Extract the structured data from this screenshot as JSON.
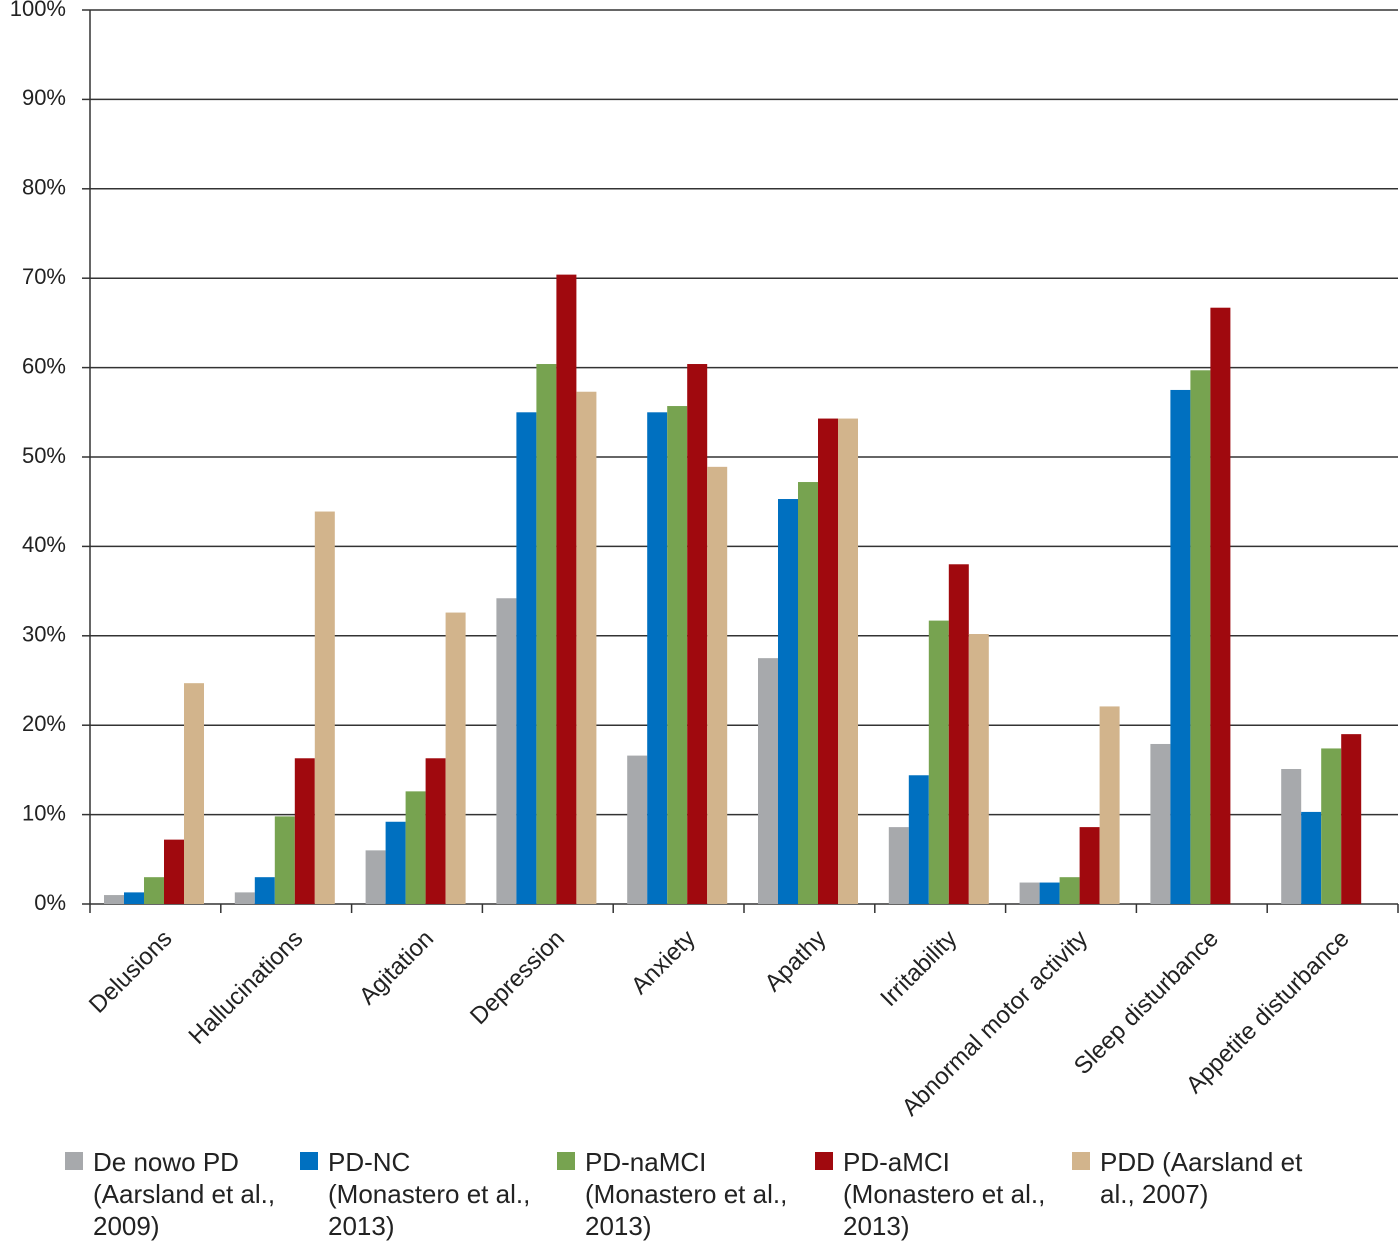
{
  "chart_data": {
    "type": "bar",
    "categories": [
      "Delusions",
      "Hallucinations",
      "Agitation",
      "Depression",
      "Anxiety",
      "Apathy",
      "Irritability",
      "Abnormal motor activity",
      "Sleep disturbance",
      "Appetite disturbance"
    ],
    "series": [
      {
        "name": "De nowo PD (Aarsland et al., 2009)",
        "color": "#a7a9ac",
        "values": [
          1.0,
          1.3,
          6.0,
          34.2,
          16.6,
          27.5,
          8.6,
          2.4,
          17.9,
          15.1
        ]
      },
      {
        "name": "PD-NC (Monastero et al., 2013)",
        "color": "#0070c0",
        "values": [
          1.3,
          3.0,
          9.2,
          55.0,
          55.0,
          45.3,
          14.4,
          2.4,
          57.5,
          10.3
        ]
      },
      {
        "name": "PD-naMCI (Monastero et al., 2013)",
        "color": "#77a350",
        "values": [
          3.0,
          9.8,
          12.6,
          60.4,
          55.7,
          47.2,
          31.7,
          3.0,
          59.7,
          17.4
        ]
      },
      {
        "name": "PD-aMCI (Monastero et al., 2013)",
        "color": "#a0090e",
        "values": [
          7.2,
          16.3,
          16.3,
          70.4,
          60.4,
          54.3,
          38.0,
          8.6,
          66.7,
          19.0
        ]
      },
      {
        "name": "PDD (Aarsland et al., 2007)",
        "color": "#d2b48c",
        "values": [
          24.7,
          43.9,
          32.6,
          57.3,
          48.9,
          54.3,
          30.2,
          22.1,
          null,
          null
        ]
      }
    ],
    "ylim": [
      0,
      100
    ],
    "yticks": [
      {
        "value": 0,
        "label": "0%"
      },
      {
        "value": 10,
        "label": "10%"
      },
      {
        "value": 20,
        "label": "20%"
      },
      {
        "value": 30,
        "label": "30%"
      },
      {
        "value": 40,
        "label": "40%"
      },
      {
        "value": 50,
        "label": "50%"
      },
      {
        "value": 60,
        "label": "60%"
      },
      {
        "value": 70,
        "label": "70%"
      },
      {
        "value": 80,
        "label": "80%"
      },
      {
        "value": 90,
        "label": "90%"
      },
      {
        "value": 100,
        "label": "100%"
      }
    ],
    "grid": true
  }
}
